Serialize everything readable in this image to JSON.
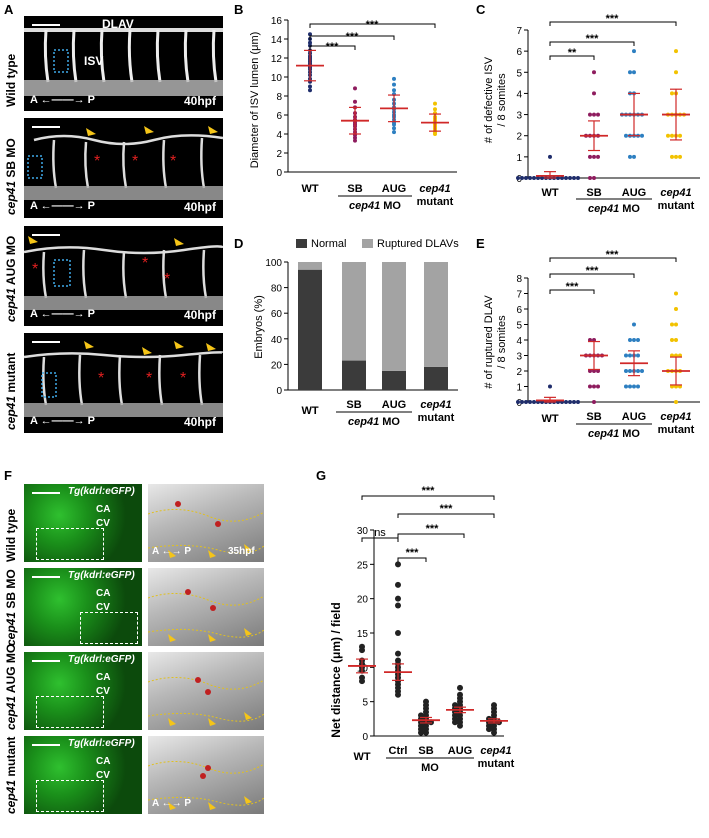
{
  "panelA": {
    "letter": "A",
    "rows": [
      {
        "label": "Wild type",
        "label_italic": ""
      },
      {
        "label": "SB MO",
        "label_italic": "cep41"
      },
      {
        "label": "AUG MO",
        "label_italic": "cep41"
      },
      {
        "label": "mutant",
        "label_italic": "cep41"
      }
    ],
    "dlav": "DLAV",
    "isv": "ISV",
    "axis": "A↔P",
    "axis_a": "A",
    "axis_p": "P",
    "stage": "40hpf"
  },
  "panelB": {
    "letter": "B",
    "ylabel": "Diameter of ISV lumen (μm)",
    "stars": "***",
    "xlabels": [
      "WT",
      "SB",
      "AUG"
    ],
    "group_italic": "cep41",
    "group_rest": " MO",
    "mutant_italic": "cep41",
    "mutant_rest": "mutant",
    "yticks": [
      "0",
      "2",
      "4",
      "6",
      "8",
      "10",
      "12",
      "14",
      "16"
    ]
  },
  "panelC": {
    "letter": "C",
    "ylabel_line1": "# of defective ISV",
    "ylabel_line2": "/ 8 somites",
    "stars3": "***",
    "stars2": "**",
    "yticks": [
      "0",
      "1",
      "2",
      "3",
      "4",
      "5",
      "6",
      "7"
    ]
  },
  "panelD": {
    "letter": "D",
    "legend_normal": "Normal",
    "legend_ruptured": "Ruptured DLAVs",
    "ylabel": "Embryos (%)",
    "yticks": [
      "0",
      "20",
      "40",
      "60",
      "80",
      "100"
    ]
  },
  "panelE": {
    "letter": "E",
    "ylabel_line1": "# of ruptured DLAV",
    "ylabel_line2": "/ 8 somites",
    "stars": "***",
    "yticks": [
      "0",
      "1",
      "2",
      "3",
      "4",
      "5",
      "6",
      "7",
      "8"
    ]
  },
  "panelF": {
    "letter": "F",
    "rows": [
      {
        "label": "Wild type",
        "label_italic": ""
      },
      {
        "label": "SB MO",
        "label_italic": "cep41"
      },
      {
        "label": "AUG MO",
        "label_italic": "cep41"
      },
      {
        "label": "mutant",
        "label_italic": "cep41"
      }
    ],
    "transgene": "Tg(kdrl:eGFP)",
    "ca": "CA",
    "cv": "CV",
    "stage": "35hpf"
  },
  "panelG": {
    "letter": "G",
    "ylabel": "Net distance (μm) / field",
    "ns": "ns",
    "stars": "***",
    "xlabels": [
      "WT",
      "Ctrl",
      "SB",
      "AUG"
    ],
    "mo": "MO",
    "mutant_italic": "cep41",
    "mutant_rest": "mutant",
    "yticks": [
      "0",
      "5",
      "10",
      "15",
      "20",
      "25",
      "30"
    ]
  },
  "chart_data": [
    {
      "id": "B",
      "type": "scatter",
      "ylabel": "Diameter of ISV lumen (μm)",
      "ylim": [
        0,
        16
      ],
      "categories": [
        "WT",
        "SB",
        "AUG",
        "cep41 mutant"
      ],
      "colors": [
        "#1f2d6b",
        "#8e1c5e",
        "#2d7fc1",
        "#f2c200"
      ],
      "means": [
        11.2,
        5.4,
        6.7,
        5.2
      ],
      "sd": [
        1.6,
        1.4,
        1.4,
        0.9
      ],
      "points": [
        [
          14.5,
          14,
          13.6,
          13.3,
          12.8,
          12.5,
          12.2,
          12,
          11.8,
          11.6,
          11.4,
          11.2,
          11,
          10.8,
          10.5,
          10.2,
          9.8,
          9.5,
          9,
          8.6
        ],
        [
          8.8,
          7.4,
          6.8,
          6.2,
          5.8,
          5.5,
          5.2,
          5,
          4.8,
          4.5,
          4.2,
          3.9,
          3.6,
          3.3
        ],
        [
          9.8,
          9.2,
          8.6,
          8.2,
          7.6,
          7.2,
          6.8,
          6.6,
          6.3,
          6,
          5.8,
          5.5,
          5.2,
          5,
          4.6,
          4.2
        ],
        [
          7.2,
          6.6,
          6.2,
          5.8,
          5.6,
          5.4,
          5.2,
          5,
          4.8,
          4.6,
          4.4,
          4.2,
          4
        ]
      ]
    },
    {
      "id": "C",
      "type": "scatter",
      "ylabel": "# of defective ISV / 8 somites",
      "ylim": [
        0,
        7
      ],
      "categories": [
        "WT",
        "SB",
        "AUG",
        "cep41 mutant"
      ],
      "colors": [
        "#1f2d6b",
        "#8e1c5e",
        "#2d7fc1",
        "#f2c200"
      ],
      "means": [
        0.1,
        2,
        3,
        3
      ],
      "sd": [
        0.2,
        0.7,
        1.0,
        1.2
      ],
      "points": [
        [
          0,
          0,
          0,
          0,
          0,
          0,
          0,
          0,
          0,
          0,
          0,
          0,
          0,
          0,
          0,
          0,
          1
        ],
        [
          5,
          4,
          3,
          3,
          3,
          2,
          2,
          2,
          2,
          1,
          1,
          1,
          0,
          0
        ],
        [
          6,
          5,
          5,
          4,
          4,
          3,
          3,
          3,
          3,
          3,
          3,
          2,
          2,
          2,
          2,
          2,
          1,
          1
        ],
        [
          6,
          5,
          4,
          4,
          3,
          3,
          3,
          3,
          3,
          2,
          2,
          2,
          2,
          1,
          1,
          1
        ]
      ]
    },
    {
      "id": "D",
      "type": "bar",
      "ylabel": "Embryos (%)",
      "ylim": [
        0,
        100
      ],
      "categories": [
        "WT",
        "SB",
        "AUG",
        "cep41 mutant"
      ],
      "series": [
        {
          "name": "Normal",
          "values": [
            94,
            23,
            15,
            18
          ],
          "color": "#3b3b3b"
        },
        {
          "name": "Ruptured DLAVs",
          "values": [
            6,
            77,
            85,
            82
          ],
          "color": "#a3a3a3"
        }
      ]
    },
    {
      "id": "E",
      "type": "scatter",
      "ylabel": "# of ruptured DLAV / 8 somites",
      "ylim": [
        0,
        8
      ],
      "categories": [
        "WT",
        "SB",
        "AUG",
        "cep41 mutant"
      ],
      "colors": [
        "#1f2d6b",
        "#8e1c5e",
        "#2d7fc1",
        "#f2c200"
      ],
      "means": [
        0.1,
        3,
        2.5,
        2
      ],
      "sd": [
        0.2,
        0.9,
        0.8,
        0.9
      ],
      "points": [
        [
          0,
          0,
          0,
          0,
          0,
          0,
          0,
          0,
          0,
          0,
          0,
          0,
          0,
          0,
          0,
          0,
          1
        ],
        [
          4,
          4,
          3,
          3,
          3,
          3,
          3,
          2,
          2,
          2,
          1,
          1,
          1,
          0
        ],
        [
          5,
          4,
          4,
          4,
          3,
          3,
          3,
          3,
          2,
          2,
          2,
          2,
          2,
          1,
          1,
          1,
          1
        ],
        [
          7,
          6,
          5,
          5,
          4,
          4,
          3,
          3,
          3,
          2,
          2,
          2,
          2,
          1,
          1,
          1,
          0
        ]
      ]
    },
    {
      "id": "G",
      "type": "scatter",
      "ylabel": "Net distance (μm) / field",
      "ylim": [
        0,
        30
      ],
      "categories": [
        "WT",
        "Ctrl",
        "SB",
        "AUG",
        "cep41 mutant"
      ],
      "colors": [
        "#222222",
        "#222222",
        "#222222",
        "#222222",
        "#222222"
      ],
      "means": [
        10.2,
        9.3,
        2.3,
        3.8,
        2.2
      ],
      "sd": [
        1.0,
        1.2,
        0.4,
        0.4,
        0.3
      ],
      "points": [
        [
          13,
          12.5,
          11,
          10.5,
          10,
          9.5,
          8.5,
          8
        ],
        [
          25,
          22,
          20,
          19,
          15,
          12,
          11,
          10.5,
          10,
          9.5,
          9,
          8.5,
          8,
          7.5,
          7,
          6.5,
          6
        ],
        [
          5,
          4.5,
          4,
          3.5,
          3,
          3,
          2.5,
          2.5,
          2,
          2,
          2,
          1.5,
          1.5,
          1,
          1,
          0.5,
          0.5
        ],
        [
          7,
          6,
          5.5,
          5,
          4.5,
          4.5,
          4,
          4,
          3.5,
          3.5,
          3,
          3,
          2.5,
          2.5,
          2,
          2,
          1.5
        ],
        [
          4.5,
          4,
          3.5,
          3,
          2.5,
          2.5,
          2,
          2,
          2,
          1.5,
          1.5,
          1,
          1,
          0.5
        ]
      ]
    }
  ]
}
